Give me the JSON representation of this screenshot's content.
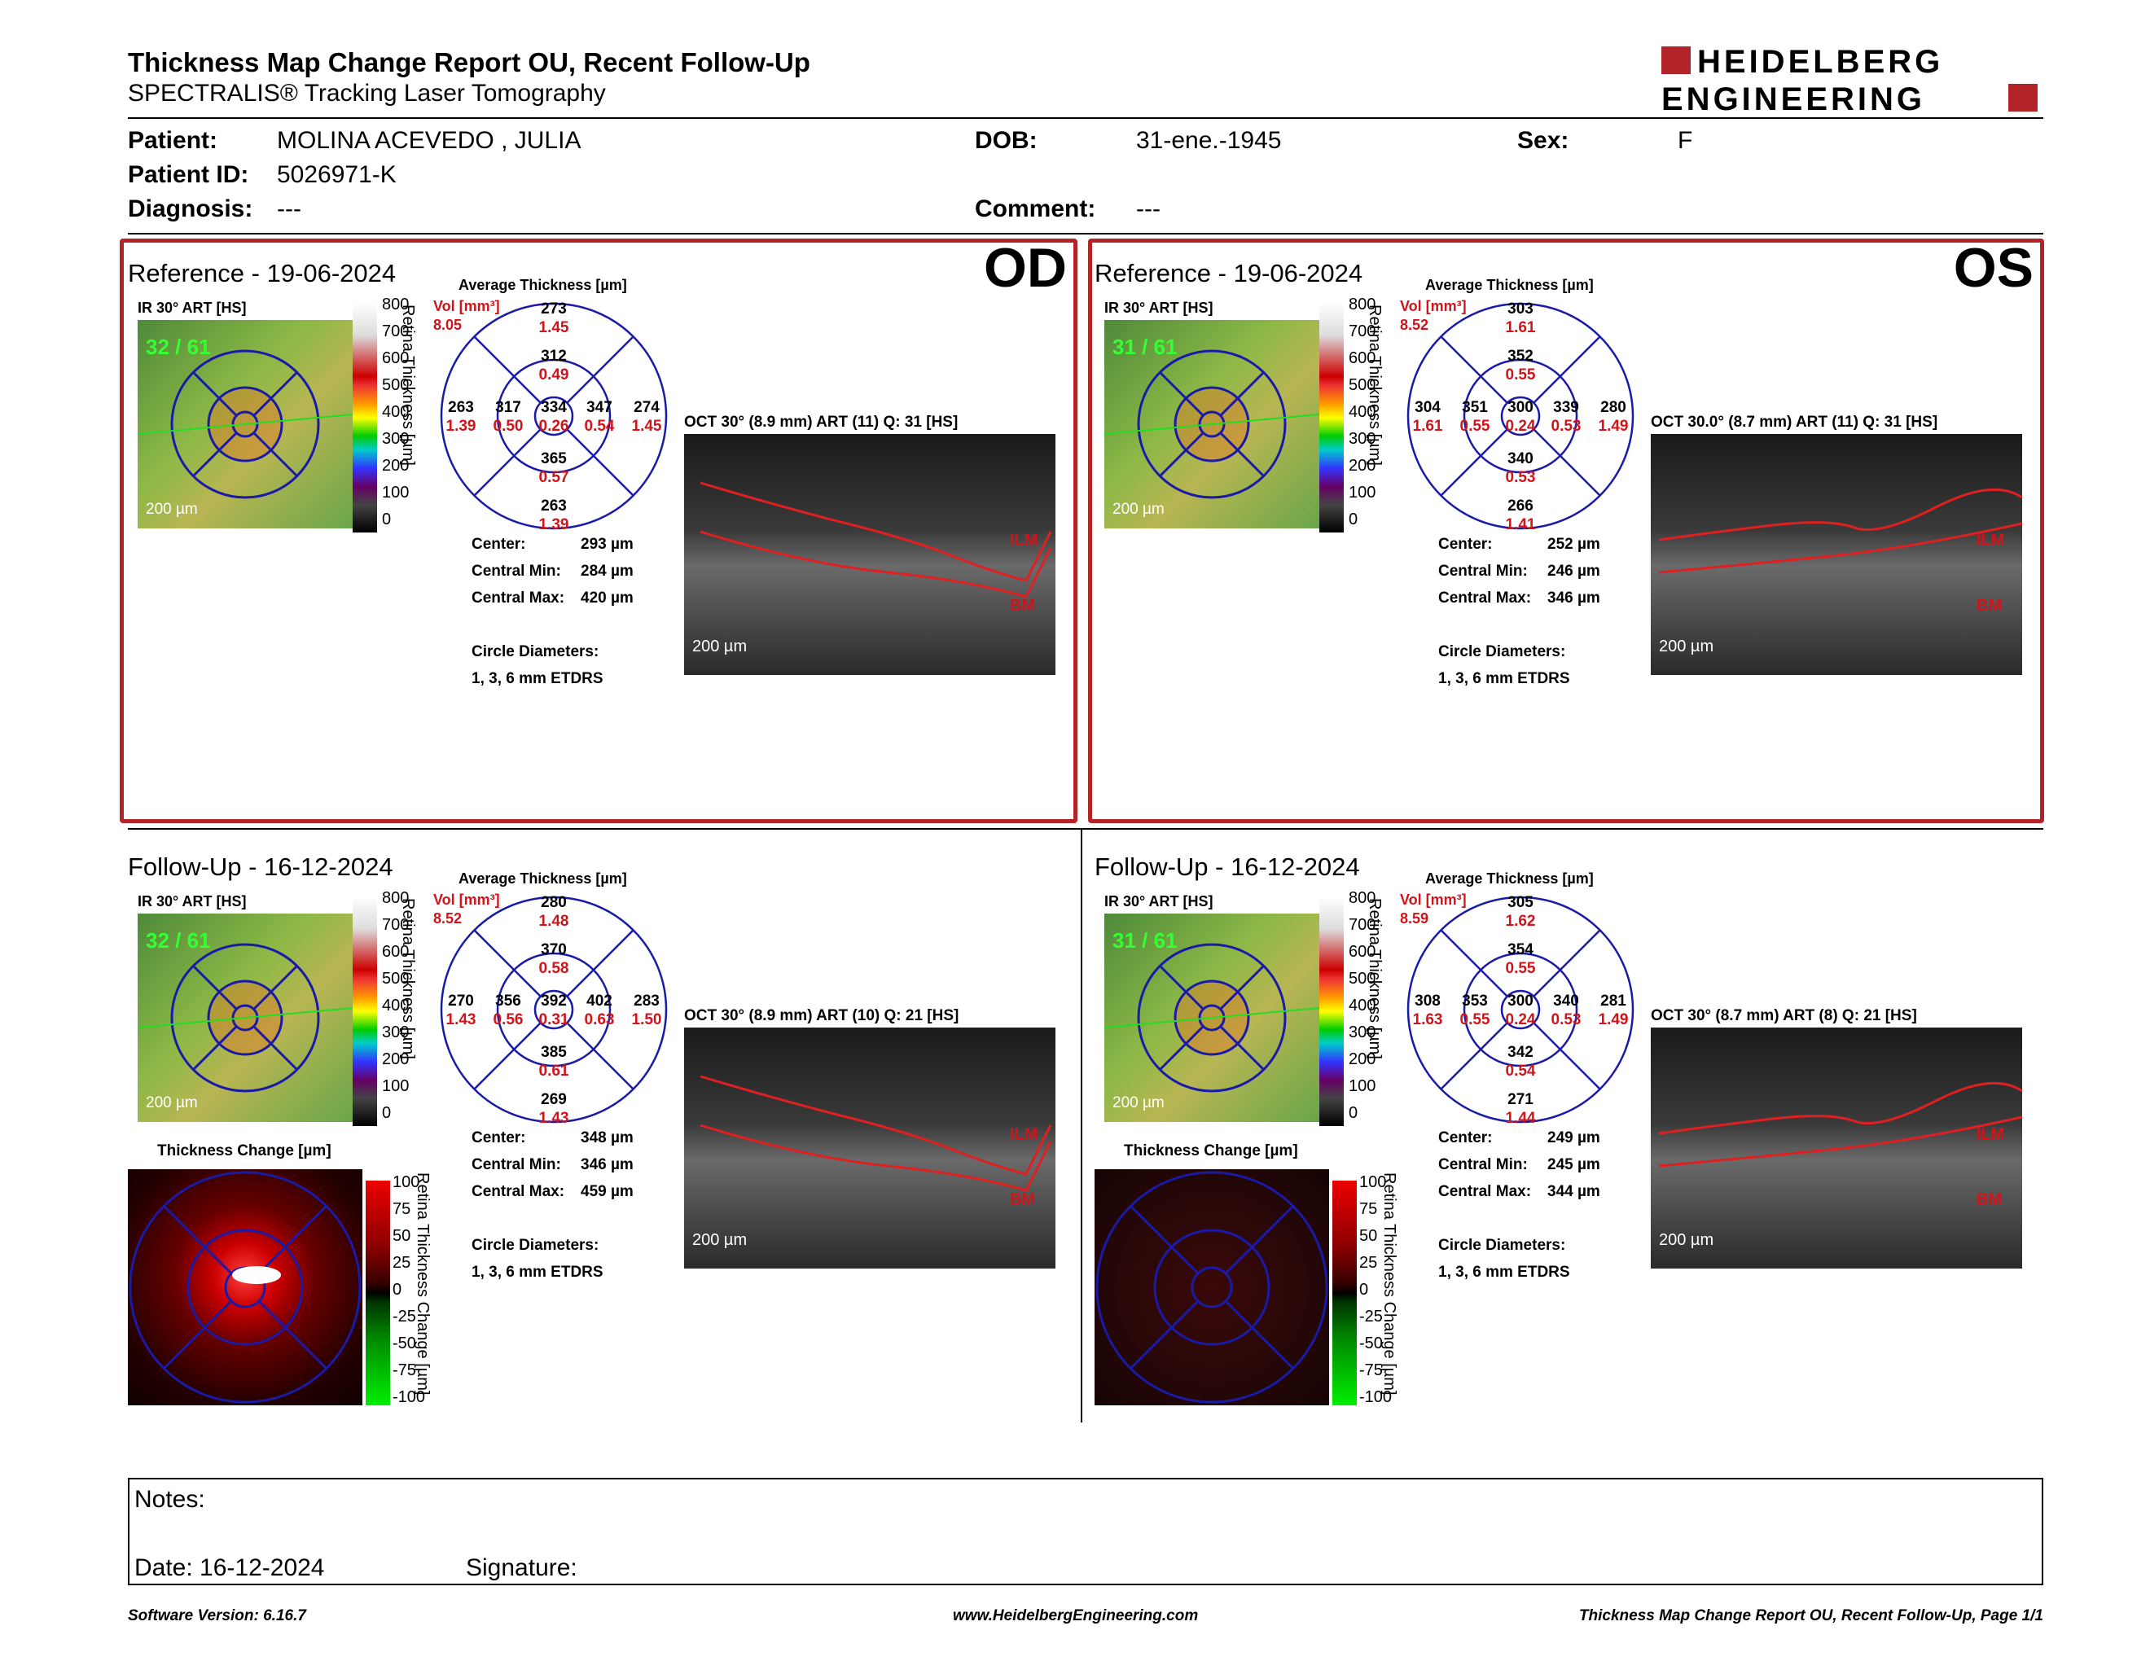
{
  "header": {
    "title": "Thickness Map Change Report OU, Recent Follow-Up",
    "subtitle": "SPECTRALIS® Tracking Laser Tomography",
    "logo_line1": "HEIDELBERG",
    "logo_line2": "ENGINEERING"
  },
  "patient": {
    "patient_label": "Patient:",
    "patient_value": "MOLINA ACEVEDO , JULIA",
    "id_label": "Patient ID:",
    "id_value": "5026971-K",
    "diag_label": "Diagnosis:",
    "diag_value": "---",
    "dob_label": "DOB:",
    "dob_value": "31-ene.-1945",
    "comment_label": "Comment:",
    "comment_value": "---",
    "sex_label": "Sex:",
    "sex_value": "F"
  },
  "common": {
    "avg_thickness": "Average Thickness [µm]",
    "vol_label": "Vol [mm³]",
    "center_label": "Center:",
    "cmin_label": "Central Min:",
    "cmax_label": "Central Max:",
    "circle_label": "Circle Diameters:",
    "circle_value": "1, 3, 6 mm ETDRS",
    "scale_ticks": [
      "800",
      "700",
      "600",
      "500",
      "400",
      "300",
      "200",
      "100",
      "0"
    ],
    "scale_axis": "Retina Thickness [µm]",
    "change_ticks": [
      "100",
      "75",
      "50",
      "25",
      "0",
      "-25",
      "-50",
      "-75",
      "-100"
    ],
    "change_axis": "Retina Thickness Change [µm]",
    "thickness_change": "Thickness Change [µm]",
    "scalebar": "200 µm",
    "ilm": "ILM",
    "bm": "BM",
    "ir_label": "IR 30° ART [HS]"
  },
  "panels": {
    "od_ref": {
      "title": "Reference - 19-06-2024",
      "eye": "OD",
      "vol": "8.05",
      "frames": "32 / 61",
      "oct": "OCT 30° (8.9 mm) ART (11) Q: 31 [HS]",
      "grid": {
        "t_out": "273",
        "t_out_v": "1.45",
        "t_in": "312",
        "t_in_v": "0.49",
        "l_out": "263",
        "l_out_v": "1.39",
        "l_in": "317",
        "l_in_v": "0.50",
        "c": "334",
        "c_v": "0.26",
        "r_in": "347",
        "r_in_v": "0.54",
        "r_out": "274",
        "r_out_v": "1.45",
        "b_in": "365",
        "b_in_v": "0.57",
        "b_out": "263",
        "b_out_v": "1.39"
      },
      "center": "293 µm",
      "cmin": "284 µm",
      "cmax": "420 µm"
    },
    "os_ref": {
      "title": "Reference - 19-06-2024",
      "eye": "OS",
      "vol": "8.52",
      "frames": "31 / 61",
      "oct": "OCT 30.0° (8.7 mm) ART (11) Q: 31 [HS]",
      "grid": {
        "t_out": "303",
        "t_out_v": "1.61",
        "t_in": "352",
        "t_in_v": "0.55",
        "l_out": "304",
        "l_out_v": "1.61",
        "l_in": "351",
        "l_in_v": "0.55",
        "c": "300",
        "c_v": "0.24",
        "r_in": "339",
        "r_in_v": "0.53",
        "r_out": "280",
        "r_out_v": "1.49",
        "b_in": "340",
        "b_in_v": "0.53",
        "b_out": "266",
        "b_out_v": "1.41"
      },
      "center": "252 µm",
      "cmin": "246 µm",
      "cmax": "346 µm"
    },
    "od_fu": {
      "title": "Follow-Up - 16-12-2024",
      "vol": "8.52",
      "frames": "32 / 61",
      "oct": "OCT 30° (8.9 mm) ART (10) Q: 21 [HS]",
      "grid": {
        "t_out": "280",
        "t_out_v": "1.48",
        "t_in": "370",
        "t_in_v": "0.58",
        "l_out": "270",
        "l_out_v": "1.43",
        "l_in": "356",
        "l_in_v": "0.56",
        "c": "392",
        "c_v": "0.31",
        "r_in": "402",
        "r_in_v": "0.63",
        "r_out": "283",
        "r_out_v": "1.50",
        "b_in": "385",
        "b_in_v": "0.61",
        "b_out": "269",
        "b_out_v": "1.43"
      },
      "center": "348 µm",
      "cmin": "346 µm",
      "cmax": "459 µm"
    },
    "os_fu": {
      "title": "Follow-Up - 16-12-2024",
      "vol": "8.59",
      "frames": "31 / 61",
      "oct": "OCT 30° (8.7 mm) ART (8) Q: 21 [HS]",
      "grid": {
        "t_out": "305",
        "t_out_v": "1.62",
        "t_in": "354",
        "t_in_v": "0.55",
        "l_out": "308",
        "l_out_v": "1.63",
        "l_in": "353",
        "l_in_v": "0.55",
        "c": "300",
        "c_v": "0.24",
        "r_in": "340",
        "r_in_v": "0.53",
        "r_out": "281",
        "r_out_v": "1.49",
        "b_in": "342",
        "b_in_v": "0.54",
        "b_out": "271",
        "b_out_v": "1.44"
      },
      "center": "249 µm",
      "cmin": "245 µm",
      "cmax": "344 µm"
    }
  },
  "notes": {
    "notes_label": "Notes:",
    "date_label": "Date: 16-12-2024",
    "signature_label": "Signature:"
  },
  "footer": {
    "software": "Software Version: 6.16.7",
    "website": "www.HeidelbergEngineering.com",
    "page": "Thickness Map Change Report OU, Recent Follow-Up, Page 1/1"
  },
  "colors": {
    "accent_red": "#b32428",
    "value_red": "#d0141a",
    "grid_blue": "#1a1aa8"
  }
}
